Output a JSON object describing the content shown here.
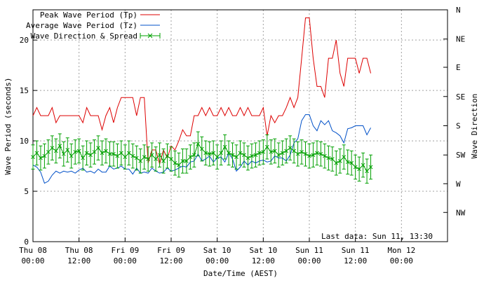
{
  "chart_data": {
    "type": "line",
    "ylabel": "Wave Period (seconds)",
    "y2label": "Wave Direction",
    "xlabel": "Date/Time (AEST)",
    "ylim": [
      0,
      23
    ],
    "yticks": [
      0,
      5,
      10,
      15,
      20
    ],
    "xlim_hours": [
      0,
      108
    ],
    "xticks": [
      {
        "h": 0,
        "line1": "Thu 08",
        "line2": "00:00"
      },
      {
        "h": 12,
        "line1": "Thu 08",
        "line2": "12:00"
      },
      {
        "h": 24,
        "line1": "Fri 09",
        "line2": "00:00"
      },
      {
        "h": 36,
        "line1": "Fri 09",
        "line2": "12:00"
      },
      {
        "h": 48,
        "line1": "Sat 10",
        "line2": "00:00"
      },
      {
        "h": 60,
        "line1": "Sat 10",
        "line2": "12:00"
      },
      {
        "h": 72,
        "line1": "Sun 11",
        "line2": "00:00"
      },
      {
        "h": 84,
        "line1": "Sun 11",
        "line2": "12:00"
      },
      {
        "h": 96,
        "line1": "Mon 12",
        "line2": "00:00"
      }
    ],
    "y2ticks": [
      {
        "label": "N",
        "v": 23
      },
      {
        "label": "NE",
        "v": 20.1
      },
      {
        "label": "E",
        "v": 17.3
      },
      {
        "label": "SE",
        "v": 14.4
      },
      {
        "label": "S",
        "v": 11.5
      },
      {
        "label": "SW",
        "v": 8.6
      },
      {
        "label": "W",
        "v": 5.75
      },
      {
        "label": "NW",
        "v": 2.9
      }
    ],
    "annotation": "Last data: Sun 11, 13:30",
    "grid": true,
    "legend_position": "top-left",
    "series": [
      {
        "name": "Peak Wave Period (Tp)",
        "color": "#dd0000",
        "points": [
          [
            0,
            12.5
          ],
          [
            1,
            13.3
          ],
          [
            2,
            12.5
          ],
          [
            3,
            12.5
          ],
          [
            4,
            12.5
          ],
          [
            5,
            13.3
          ],
          [
            6,
            11.8
          ],
          [
            7,
            12.5
          ],
          [
            8,
            12.5
          ],
          [
            9,
            12.5
          ],
          [
            10,
            12.5
          ],
          [
            11,
            12.5
          ],
          [
            12,
            12.5
          ],
          [
            13,
            11.8
          ],
          [
            14,
            13.3
          ],
          [
            15,
            12.5
          ],
          [
            16,
            12.5
          ],
          [
            17,
            12.5
          ],
          [
            18,
            11.1
          ],
          [
            19,
            12.5
          ],
          [
            20,
            13.3
          ],
          [
            21,
            11.8
          ],
          [
            22,
            13.3
          ],
          [
            23,
            14.3
          ],
          [
            24,
            14.3
          ],
          [
            25,
            14.3
          ],
          [
            26,
            14.3
          ],
          [
            27,
            12.5
          ],
          [
            28,
            14.3
          ],
          [
            29,
            14.3
          ],
          [
            30,
            7.8
          ],
          [
            31,
            9.1
          ],
          [
            32,
            9.1
          ],
          [
            33,
            7.7
          ],
          [
            34,
            9.1
          ],
          [
            35,
            8.3
          ],
          [
            36,
            9.5
          ],
          [
            37,
            9.1
          ],
          [
            38,
            10.0
          ],
          [
            39,
            11.1
          ],
          [
            40,
            10.5
          ],
          [
            41,
            10.5
          ],
          [
            42,
            12.5
          ],
          [
            43,
            12.5
          ],
          [
            44,
            13.3
          ],
          [
            45,
            12.5
          ],
          [
            46,
            13.3
          ],
          [
            47,
            12.5
          ],
          [
            48,
            12.5
          ],
          [
            49,
            13.3
          ],
          [
            50,
            12.5
          ],
          [
            51,
            13.3
          ],
          [
            52,
            12.5
          ],
          [
            53,
            12.5
          ],
          [
            54,
            13.3
          ],
          [
            55,
            12.5
          ],
          [
            56,
            13.3
          ],
          [
            57,
            12.5
          ],
          [
            58,
            12.5
          ],
          [
            59,
            12.5
          ],
          [
            60,
            13.3
          ],
          [
            61,
            10.5
          ],
          [
            62,
            12.5
          ],
          [
            63,
            11.8
          ],
          [
            64,
            12.5
          ],
          [
            65,
            12.5
          ],
          [
            66,
            13.3
          ],
          [
            67,
            14.3
          ],
          [
            68,
            13.3
          ],
          [
            69,
            14.3
          ],
          [
            70,
            18.2
          ],
          [
            71,
            22.2
          ],
          [
            72,
            22.2
          ],
          [
            73,
            18.2
          ],
          [
            74,
            15.4
          ],
          [
            75,
            15.4
          ],
          [
            76,
            14.3
          ],
          [
            77,
            18.2
          ],
          [
            78,
            18.2
          ],
          [
            79,
            20.0
          ],
          [
            80,
            16.7
          ],
          [
            81,
            15.4
          ],
          [
            82,
            18.2
          ],
          [
            83,
            18.2
          ],
          [
            84,
            18.2
          ],
          [
            85,
            16.7
          ],
          [
            86,
            18.2
          ],
          [
            87,
            18.2
          ],
          [
            88,
            16.7
          ]
        ]
      },
      {
        "name": "Average Wave Period (Tz)",
        "color": "#0050c8",
        "points": [
          [
            0,
            7.6
          ],
          [
            1,
            7.4
          ],
          [
            2,
            6.9
          ],
          [
            3,
            5.8
          ],
          [
            4,
            6.0
          ],
          [
            5,
            6.6
          ],
          [
            6,
            7.0
          ],
          [
            7,
            6.8
          ],
          [
            8,
            7.0
          ],
          [
            9,
            6.9
          ],
          [
            10,
            7.0
          ],
          [
            11,
            6.8
          ],
          [
            12,
            7.1
          ],
          [
            13,
            7.3
          ],
          [
            14,
            6.9
          ],
          [
            15,
            7.0
          ],
          [
            16,
            6.8
          ],
          [
            17,
            7.2
          ],
          [
            18,
            6.9
          ],
          [
            19,
            6.9
          ],
          [
            20,
            7.5
          ],
          [
            21,
            7.2
          ],
          [
            22,
            7.3
          ],
          [
            23,
            7.5
          ],
          [
            24,
            7.2
          ],
          [
            25,
            7.2
          ],
          [
            26,
            6.7
          ],
          [
            27,
            7.3
          ],
          [
            28,
            6.8
          ],
          [
            29,
            6.9
          ],
          [
            30,
            6.8
          ],
          [
            31,
            7.3
          ],
          [
            32,
            7.0
          ],
          [
            33,
            6.8
          ],
          [
            34,
            6.9
          ],
          [
            35,
            7.3
          ],
          [
            36,
            7.0
          ],
          [
            37,
            7.1
          ],
          [
            38,
            7.3
          ],
          [
            39,
            7.5
          ],
          [
            40,
            7.4
          ],
          [
            41,
            7.9
          ],
          [
            42,
            8.0
          ],
          [
            43,
            8.7
          ],
          [
            44,
            8.0
          ],
          [
            45,
            8.2
          ],
          [
            46,
            8.5
          ],
          [
            47,
            7.9
          ],
          [
            48,
            8.3
          ],
          [
            49,
            8.4
          ],
          [
            50,
            7.9
          ],
          [
            51,
            8.8
          ],
          [
            52,
            8.2
          ],
          [
            53,
            7.0
          ],
          [
            54,
            7.4
          ],
          [
            55,
            8.0
          ],
          [
            56,
            7.6
          ],
          [
            57,
            8.0
          ],
          [
            58,
            7.8
          ],
          [
            59,
            8.0
          ],
          [
            60,
            8.1
          ],
          [
            61,
            7.9
          ],
          [
            62,
            8.0
          ],
          [
            63,
            8.5
          ],
          [
            64,
            8.3
          ],
          [
            65,
            8.3
          ],
          [
            66,
            8.0
          ],
          [
            67,
            8.6
          ],
          [
            68,
            9.8
          ],
          [
            69,
            10.2
          ],
          [
            70,
            12.0
          ],
          [
            71,
            12.6
          ],
          [
            72,
            12.6
          ],
          [
            73,
            11.5
          ],
          [
            74,
            11.0
          ],
          [
            75,
            12.0
          ],
          [
            76,
            11.6
          ],
          [
            77,
            12.0
          ],
          [
            78,
            11.0
          ],
          [
            79,
            10.8
          ],
          [
            80,
            10.5
          ],
          [
            81,
            9.8
          ],
          [
            82,
            11.2
          ],
          [
            83,
            11.3
          ],
          [
            84,
            11.5
          ],
          [
            85,
            11.5
          ],
          [
            86,
            11.5
          ],
          [
            87,
            10.6
          ],
          [
            88,
            11.3
          ]
        ]
      },
      {
        "name": "Wave Direction & Spread",
        "color": "#00a000",
        "errorbar": 1.2,
        "points": [
          [
            0,
            8.4
          ],
          [
            1,
            8.8
          ],
          [
            2,
            8.3
          ],
          [
            3,
            8.5
          ],
          [
            4,
            8.9
          ],
          [
            5,
            9.3
          ],
          [
            6,
            9.0
          ],
          [
            7,
            9.5
          ],
          [
            8,
            8.7
          ],
          [
            9,
            9.1
          ],
          [
            10,
            8.5
          ],
          [
            11,
            8.9
          ],
          [
            12,
            9.0
          ],
          [
            13,
            8.3
          ],
          [
            14,
            8.8
          ],
          [
            15,
            8.6
          ],
          [
            16,
            8.9
          ],
          [
            17,
            9.3
          ],
          [
            18,
            8.8
          ],
          [
            19,
            9.0
          ],
          [
            20,
            8.7
          ],
          [
            21,
            8.7
          ],
          [
            22,
            8.5
          ],
          [
            23,
            8.8
          ],
          [
            24,
            8.4
          ],
          [
            25,
            8.8
          ],
          [
            26,
            8.5
          ],
          [
            27,
            8.3
          ],
          [
            28,
            8.0
          ],
          [
            29,
            8.4
          ],
          [
            30,
            8.2
          ],
          [
            31,
            8.6
          ],
          [
            32,
            8.2
          ],
          [
            33,
            8.6
          ],
          [
            34,
            8.0
          ],
          [
            35,
            8.5
          ],
          [
            36,
            8.2
          ],
          [
            37,
            7.8
          ],
          [
            38,
            7.6
          ],
          [
            39,
            8.0
          ],
          [
            40,
            8.0
          ],
          [
            41,
            8.4
          ],
          [
            42,
            8.6
          ],
          [
            43,
            9.7
          ],
          [
            44,
            9.2
          ],
          [
            45,
            8.8
          ],
          [
            46,
            8.7
          ],
          [
            47,
            8.8
          ],
          [
            48,
            8.4
          ],
          [
            49,
            8.8
          ],
          [
            50,
            9.4
          ],
          [
            51,
            8.8
          ],
          [
            52,
            8.6
          ],
          [
            53,
            8.4
          ],
          [
            54,
            8.8
          ],
          [
            55,
            8.6
          ],
          [
            56,
            8.3
          ],
          [
            57,
            8.5
          ],
          [
            58,
            8.6
          ],
          [
            59,
            8.8
          ],
          [
            60,
            8.9
          ],
          [
            61,
            9.4
          ],
          [
            62,
            8.9
          ],
          [
            63,
            9.0
          ],
          [
            64,
            8.6
          ],
          [
            65,
            8.8
          ],
          [
            66,
            9.0
          ],
          [
            67,
            9.3
          ],
          [
            68,
            9.0
          ],
          [
            69,
            8.7
          ],
          [
            70,
            8.9
          ],
          [
            71,
            8.7
          ],
          [
            72,
            8.5
          ],
          [
            73,
            8.6
          ],
          [
            74,
            8.8
          ],
          [
            75,
            8.7
          ],
          [
            76,
            8.5
          ],
          [
            77,
            8.3
          ],
          [
            78,
            8.2
          ],
          [
            79,
            7.8
          ],
          [
            80,
            8.0
          ],
          [
            81,
            8.4
          ],
          [
            82,
            7.9
          ],
          [
            83,
            7.8
          ],
          [
            84,
            7.4
          ],
          [
            85,
            7.2
          ],
          [
            86,
            7.6
          ],
          [
            87,
            7.0
          ],
          [
            88,
            7.4
          ]
        ]
      }
    ]
  }
}
